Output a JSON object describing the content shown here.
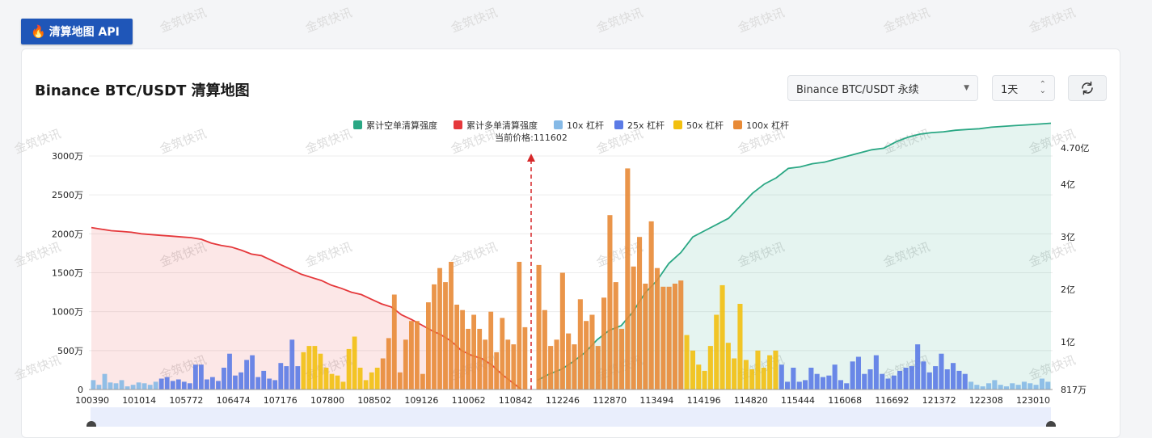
{
  "badge": {
    "label": "清算地图 API"
  },
  "header": {
    "title": "Binance BTC/USDT 清算地图",
    "pair_select": "Binance BTC/USDT 永续",
    "range_select": "1天"
  },
  "watermark": "金筑快讯",
  "colors": {
    "short_cum": "#2aa784",
    "long_cum": "#e5383b",
    "lev10": "#85b9e6",
    "lev25": "#5b7be6",
    "lev50": "#f2c00f",
    "lev100": "#e88a36"
  },
  "chart_data": {
    "type": "bar",
    "legend": [
      "累计空单清算强度",
      "累计多单清算强度",
      "10x 杠杆",
      "25x 杠杆",
      "50x 杠杆",
      "100x 杠杆"
    ],
    "current_price_label": "当前价格:111602",
    "current_price": 111602,
    "x_tick_labels": [
      "100390",
      "101014",
      "105772",
      "106474",
      "107176",
      "107800",
      "108502",
      "109126",
      "110062",
      "110842",
      "112246",
      "112870",
      "113494",
      "114196",
      "114820",
      "115444",
      "116068",
      "116692",
      "121372",
      "122308",
      "123010"
    ],
    "y_left": {
      "ticks": [
        "0",
        "500万",
        "1000万",
        "1500万",
        "2000万",
        "2500万",
        "3000万"
      ],
      "max_wan": 3000
    },
    "y_right": {
      "ticks": [
        "817万",
        "1亿",
        "2亿",
        "3亿",
        "4亿",
        "4.70亿"
      ]
    },
    "bars_left_wan": [
      [
        120,
        "lev10"
      ],
      [
        60,
        "lev10"
      ],
      [
        200,
        "lev10"
      ],
      [
        90,
        "lev10"
      ],
      [
        80,
        "lev10"
      ],
      [
        120,
        "lev10"
      ],
      [
        40,
        "lev10"
      ],
      [
        60,
        "lev10"
      ],
      [
        90,
        "lev10"
      ],
      [
        80,
        "lev10"
      ],
      [
        60,
        "lev10"
      ],
      [
        100,
        "lev10"
      ],
      [
        140,
        "lev25"
      ],
      [
        160,
        "lev25"
      ],
      [
        110,
        "lev25"
      ],
      [
        130,
        "lev25"
      ],
      [
        100,
        "lev25"
      ],
      [
        80,
        "lev25"
      ],
      [
        320,
        "lev25"
      ],
      [
        320,
        "lev25"
      ],
      [
        130,
        "lev25"
      ],
      [
        160,
        "lev25"
      ],
      [
        110,
        "lev25"
      ],
      [
        280,
        "lev25"
      ],
      [
        460,
        "lev25"
      ],
      [
        180,
        "lev25"
      ],
      [
        220,
        "lev25"
      ],
      [
        380,
        "lev25"
      ],
      [
        440,
        "lev25"
      ],
      [
        160,
        "lev25"
      ],
      [
        240,
        "lev25"
      ],
      [
        140,
        "lev25"
      ],
      [
        120,
        "lev25"
      ],
      [
        340,
        "lev25"
      ],
      [
        300,
        "lev25"
      ],
      [
        640,
        "lev25"
      ],
      [
        300,
        "lev25"
      ],
      [
        480,
        "lev50"
      ],
      [
        560,
        "lev50"
      ],
      [
        560,
        "lev50"
      ],
      [
        460,
        "lev50"
      ],
      [
        280,
        "lev50"
      ],
      [
        200,
        "lev50"
      ],
      [
        180,
        "lev50"
      ],
      [
        100,
        "lev50"
      ],
      [
        520,
        "lev50"
      ],
      [
        680,
        "lev50"
      ],
      [
        280,
        "lev50"
      ],
      [
        120,
        "lev50"
      ],
      [
        220,
        "lev50"
      ],
      [
        280,
        "lev50"
      ],
      [
        400,
        "lev100"
      ],
      [
        660,
        "lev100"
      ],
      [
        1220,
        "lev100"
      ],
      [
        220,
        "lev100"
      ],
      [
        640,
        "lev100"
      ],
      [
        880,
        "lev100"
      ],
      [
        880,
        "lev100"
      ],
      [
        200,
        "lev100"
      ],
      [
        1120,
        "lev100"
      ],
      [
        1350,
        "lev100"
      ],
      [
        1560,
        "lev100"
      ],
      [
        1380,
        "lev100"
      ],
      [
        1640,
        "lev100"
      ],
      [
        1090,
        "lev100"
      ],
      [
        1020,
        "lev100"
      ],
      [
        780,
        "lev100"
      ],
      [
        960,
        "lev100"
      ],
      [
        780,
        "lev100"
      ],
      [
        640,
        "lev100"
      ],
      [
        1000,
        "lev100"
      ],
      [
        480,
        "lev100"
      ],
      [
        920,
        "lev100"
      ],
      [
        640,
        "lev100"
      ],
      [
        580,
        "lev100"
      ],
      [
        1640,
        "lev100"
      ],
      [
        800,
        "lev100"
      ]
    ],
    "bars_right_wan": [
      [
        1600,
        "lev100"
      ],
      [
        1020,
        "lev100"
      ],
      [
        560,
        "lev100"
      ],
      [
        640,
        "lev100"
      ],
      [
        1500,
        "lev100"
      ],
      [
        720,
        "lev100"
      ],
      [
        580,
        "lev100"
      ],
      [
        1160,
        "lev100"
      ],
      [
        880,
        "lev100"
      ],
      [
        960,
        "lev100"
      ],
      [
        560,
        "lev100"
      ],
      [
        1180,
        "lev100"
      ],
      [
        2240,
        "lev100"
      ],
      [
        1380,
        "lev100"
      ],
      [
        780,
        "lev100"
      ],
      [
        2840,
        "lev100"
      ],
      [
        1580,
        "lev100"
      ],
      [
        1960,
        "lev100"
      ],
      [
        1360,
        "lev100"
      ],
      [
        2160,
        "lev100"
      ],
      [
        1560,
        "lev100"
      ],
      [
        1320,
        "lev100"
      ],
      [
        1320,
        "lev100"
      ],
      [
        1360,
        "lev100"
      ],
      [
        1400,
        "lev100"
      ],
      [
        700,
        "lev50"
      ],
      [
        500,
        "lev50"
      ],
      [
        320,
        "lev50"
      ],
      [
        240,
        "lev50"
      ],
      [
        560,
        "lev50"
      ],
      [
        960,
        "lev50"
      ],
      [
        1340,
        "lev50"
      ],
      [
        600,
        "lev50"
      ],
      [
        400,
        "lev50"
      ],
      [
        1100,
        "lev50"
      ],
      [
        380,
        "lev50"
      ],
      [
        260,
        "lev50"
      ],
      [
        500,
        "lev50"
      ],
      [
        280,
        "lev50"
      ],
      [
        440,
        "lev50"
      ],
      [
        500,
        "lev50"
      ],
      [
        320,
        "lev25"
      ],
      [
        100,
        "lev25"
      ],
      [
        280,
        "lev25"
      ],
      [
        100,
        "lev25"
      ],
      [
        120,
        "lev25"
      ],
      [
        280,
        "lev25"
      ],
      [
        200,
        "lev25"
      ],
      [
        160,
        "lev25"
      ],
      [
        180,
        "lev25"
      ],
      [
        320,
        "lev25"
      ],
      [
        120,
        "lev25"
      ],
      [
        80,
        "lev25"
      ],
      [
        360,
        "lev25"
      ],
      [
        420,
        "lev25"
      ],
      [
        200,
        "lev25"
      ],
      [
        260,
        "lev25"
      ],
      [
        440,
        "lev25"
      ],
      [
        200,
        "lev25"
      ],
      [
        140,
        "lev25"
      ],
      [
        180,
        "lev25"
      ],
      [
        240,
        "lev25"
      ],
      [
        280,
        "lev25"
      ],
      [
        300,
        "lev25"
      ],
      [
        580,
        "lev25"
      ],
      [
        360,
        "lev25"
      ],
      [
        220,
        "lev25"
      ],
      [
        300,
        "lev25"
      ],
      [
        460,
        "lev25"
      ],
      [
        260,
        "lev25"
      ],
      [
        340,
        "lev25"
      ],
      [
        240,
        "lev25"
      ],
      [
        200,
        "lev25"
      ],
      [
        100,
        "lev10"
      ],
      [
        60,
        "lev10"
      ],
      [
        40,
        "lev10"
      ],
      [
        80,
        "lev10"
      ],
      [
        120,
        "lev10"
      ],
      [
        60,
        "lev10"
      ],
      [
        40,
        "lev10"
      ],
      [
        80,
        "lev10"
      ],
      [
        60,
        "lev10"
      ],
      [
        100,
        "lev10"
      ],
      [
        80,
        "lev10"
      ],
      [
        60,
        "lev10"
      ],
      [
        140,
        "lev10"
      ],
      [
        100,
        "lev10"
      ]
    ],
    "long_cum_wan": [
      2080,
      2060,
      2040,
      2030,
      2020,
      2000,
      1990,
      1980,
      1970,
      1960,
      1950,
      1930,
      1880,
      1850,
      1830,
      1790,
      1740,
      1720,
      1660,
      1600,
      1540,
      1480,
      1440,
      1400,
      1340,
      1300,
      1250,
      1220,
      1160,
      1100,
      1060,
      960,
      900,
      830,
      760,
      700,
      620,
      500,
      440,
      400,
      320,
      200,
      100,
      0
    ],
    "short_cum_wan": [
      120,
      200,
      260,
      360,
      480,
      640,
      760,
      820,
      1000,
      1240,
      1400,
      1620,
      1760,
      1960,
      2040,
      2120,
      2200,
      2360,
      2520,
      2640,
      2720,
      2840,
      2860,
      2900,
      2920,
      2960,
      3000,
      3040,
      3080,
      3100,
      3180,
      3240,
      3280,
      3300,
      3310,
      3330,
      3340,
      3350,
      3370,
      3380,
      3390,
      3400,
      3410,
      3420
    ]
  }
}
